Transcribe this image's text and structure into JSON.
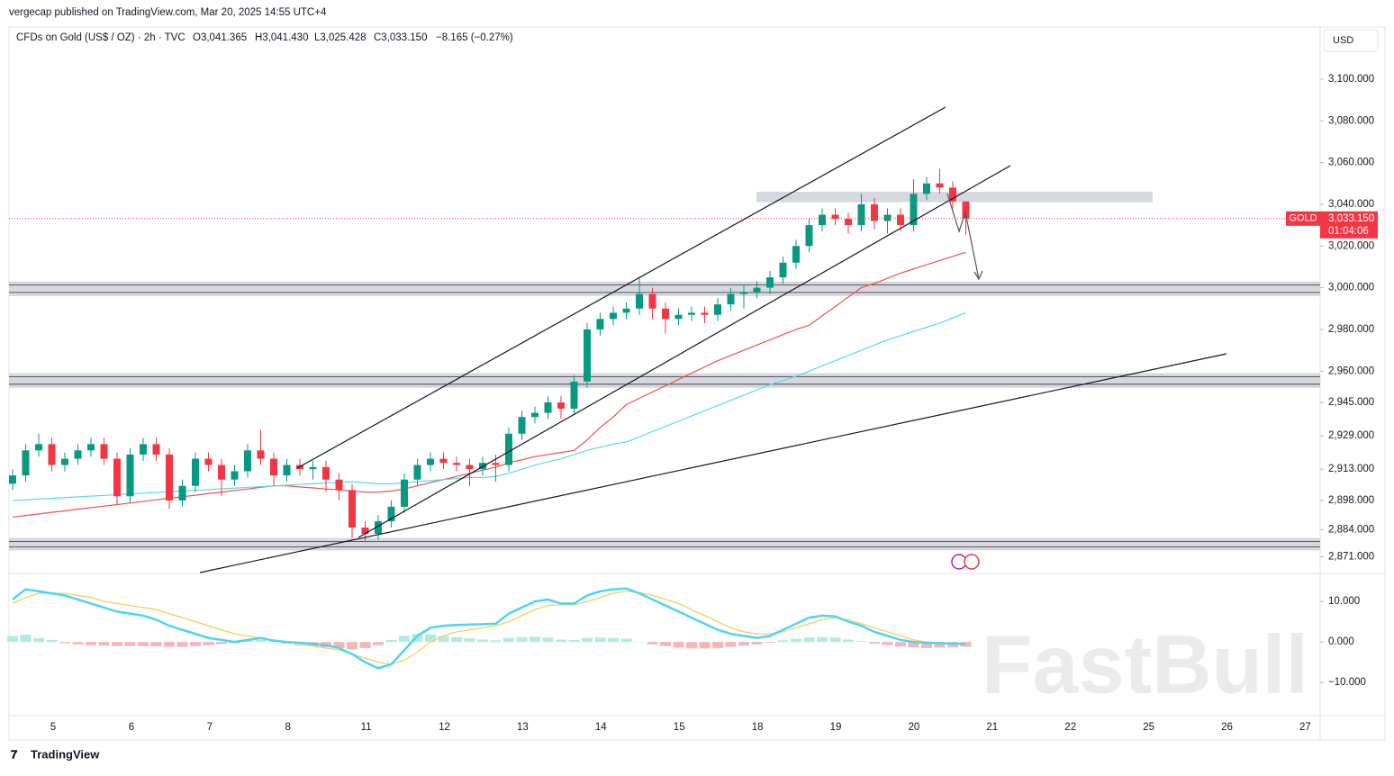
{
  "header": {
    "attribution": "vergecap published on TradingView.com, Mar 20, 2025 14:55 UTC+4",
    "footer": "TradingView"
  },
  "chart_data": {
    "type": "candlestick",
    "title": "CFDs on Gold (US$ / OZ) · 2h · TVC",
    "ohlc_labels": [
      "O3,041.365",
      "H3,041.430",
      "L3,025.428",
      "C3,033.150",
      "−8.165 (−0.27%)"
    ],
    "currency": "USD",
    "watermark": "FastBull",
    "categories": [
      "5",
      "6",
      "7",
      "8",
      "11",
      "12",
      "13",
      "14",
      "15",
      "18",
      "19",
      "20",
      "21",
      "22",
      "25",
      "26",
      "27"
    ],
    "open": [
      2906,
      2910,
      2922,
      2925,
      2915,
      2918,
      2922,
      2925,
      2918,
      2900,
      2920,
      2925,
      2920,
      2898,
      2905,
      2918,
      2915,
      2908,
      2912,
      2922,
      2918,
      2910,
      2915,
      2913,
      2914,
      2908,
      2903,
      2885,
      2882,
      2888,
      2895,
      2908,
      2915,
      2918,
      2916,
      2915,
      2913,
      2916,
      2915,
      2930,
      2938,
      2940,
      2945,
      2942,
      2955,
      2980,
      2985,
      2988,
      2990,
      2997,
      2990,
      2985,
      2987,
      2988,
      2987,
      2992,
      2997,
      2998,
      3000,
      3005,
      3012,
      3020,
      3030,
      3035,
      3033,
      3030,
      3040,
      3032,
      3035,
      3030,
      3045,
      3050,
      3048,
      3041.365
    ],
    "high": [
      2913,
      2925,
      2930,
      2928,
      2921,
      2925,
      2928,
      2928,
      2921,
      2923,
      2928,
      2928,
      2923,
      2908,
      2921,
      2921,
      2918,
      2915,
      2925,
      2932,
      2921,
      2918,
      2918,
      2917,
      2917,
      2911,
      2906,
      2888,
      2891,
      2898,
      2911,
      2918,
      2921,
      2921,
      2919,
      2918,
      2919,
      2920,
      2933,
      2941,
      2943,
      2948,
      2948,
      2958,
      2983,
      2988,
      2991,
      2993,
      3005,
      3000,
      2993,
      2990,
      2991,
      2991,
      2995,
      3000,
      3001,
      3003,
      3008,
      3015,
      3023,
      3033,
      3038,
      3038,
      3036,
      3045,
      3043,
      3038,
      3038,
      3052,
      3053,
      3057,
      3051,
      3041.43
    ],
    "low": [
      2903,
      2907,
      2919,
      2912,
      2912,
      2915,
      2919,
      2915,
      2896,
      2897,
      2917,
      2917,
      2894,
      2895,
      2902,
      2912,
      2900,
      2905,
      2909,
      2915,
      2905,
      2907,
      2910,
      2908,
      2902,
      2898,
      2880,
      2878,
      2879,
      2885,
      2892,
      2905,
      2912,
      2913,
      2912,
      2905,
      2910,
      2907,
      2912,
      2927,
      2935,
      2937,
      2937,
      2939,
      2952,
      2977,
      2982,
      2985,
      2987,
      2985,
      2978,
      2982,
      2984,
      2983,
      2984,
      2989,
      2990,
      2995,
      2997,
      3002,
      3009,
      3017,
      3027,
      3030,
      3026,
      3027,
      3028,
      3026,
      3027,
      3027,
      3042,
      3045,
      3038,
      3025.428
    ],
    "close": [
      2910,
      2922,
      2925,
      2915,
      2918,
      2922,
      2925,
      2918,
      2900,
      2920,
      2925,
      2920,
      2898,
      2905,
      2918,
      2915,
      2908,
      2912,
      2922,
      2918,
      2910,
      2915,
      2913,
      2914,
      2908,
      2903,
      2885,
      2882,
      2888,
      2895,
      2908,
      2915,
      2918,
      2916,
      2915,
      2913,
      2916,
      2915,
      2930,
      2938,
      2940,
      2945,
      2942,
      2955,
      2980,
      2985,
      2988,
      2990,
      2997,
      2990,
      2985,
      2987,
      2988,
      2987,
      2992,
      2997,
      2998,
      3000,
      3005,
      3012,
      3020,
      3030,
      3035,
      3033,
      3030,
      3040,
      3032,
      3035,
      3030,
      3045,
      3050,
      3048,
      3041.365,
      3033.15
    ],
    "up_color": "#089981",
    "down_color": "#f23645",
    "moving_averages": [
      {
        "color": "#f0524a",
        "values": [
          2890,
          2890.8,
          2891.5,
          2892.3,
          2893,
          2893.8,
          2894.5,
          2895.3,
          2896,
          2896.8,
          2897.5,
          2898.3,
          2899,
          2899.8,
          2900.5,
          2901.3,
          2902,
          2902.8,
          2903.5,
          2904.3,
          2905,
          2905,
          2904.5,
          2904,
          2903.5,
          2903,
          2902.5,
          2902,
          2902,
          2902.5,
          2903.5,
          2905,
          2906.5,
          2908,
          2909.5,
          2911,
          2912.5,
          2914,
          2916,
          2917.5,
          2919,
          2920,
          2921,
          2922,
          2927,
          2933,
          2938,
          2944,
          2947,
          2950,
          2953,
          2956,
          2959,
          2962,
          2965,
          2967.5,
          2970,
          2972.5,
          2975,
          2977.5,
          2980,
          2982,
          2986.5,
          2991,
          2995.5,
          3000,
          3002,
          3004.5,
          3007,
          3009,
          3011,
          3013,
          3015,
          3017
        ]
      },
      {
        "color": "#5ad8ee",
        "values": [
          2898,
          2898.3,
          2898.7,
          2899,
          2899.4,
          2899.7,
          2900.1,
          2900.4,
          2900.8,
          2901.1,
          2901.5,
          2901.8,
          2902.2,
          2902.5,
          2902.9,
          2903.2,
          2903.6,
          2903.9,
          2904.3,
          2904.6,
          2905,
          2905.3,
          2905.7,
          2906,
          2906.4,
          2906.7,
          2907,
          2906.5,
          2906,
          2906,
          2906.5,
          2907,
          2907.5,
          2908,
          2908.5,
          2909,
          2909,
          2909.5,
          2911,
          2913,
          2915,
          2916.5,
          2918,
          2920,
          2922,
          2923.5,
          2925,
          2926,
          2928.5,
          2931,
          2933.5,
          2936,
          2938.5,
          2941,
          2943.5,
          2946,
          2948.5,
          2951,
          2953.5,
          2955.5,
          2957.5,
          2960,
          2962.5,
          2965,
          2967.5,
          2970,
          2972.5,
          2975,
          2977,
          2979,
          2981,
          2983,
          2985.5,
          2988
        ]
      }
    ],
    "zones": [
      {
        "from": 3041,
        "to": 3046
      },
      {
        "from": 2996,
        "to": 3003
      },
      {
        "from": 2952,
        "to": 2959
      },
      {
        "from": 2874,
        "to": 2880
      }
    ],
    "last_price": {
      "value": 3033.15,
      "label": "3,033.150",
      "symbol": "GOLD",
      "countdown": "01:04:06",
      "color": "#f23645"
    },
    "ylim": [
      2863,
      3125
    ],
    "yticks": [
      {
        "value": 3100,
        "label": "3,100.000"
      },
      {
        "value": 3080,
        "label": "3,080.000"
      },
      {
        "value": 3060,
        "label": "3,060.000"
      },
      {
        "value": 3040,
        "label": "3,040.000"
      },
      {
        "value": 3020,
        "label": "3,020.000"
      },
      {
        "value": 3000,
        "label": "3,000.000"
      },
      {
        "value": 2980,
        "label": "2,980.000"
      },
      {
        "value": 2960,
        "label": "2,960.000"
      },
      {
        "value": 2945,
        "label": "2,945.000"
      },
      {
        "value": 2929,
        "label": "2,929.000"
      },
      {
        "value": 2913,
        "label": "2,913.000"
      },
      {
        "value": 2898,
        "label": "2,898.000"
      },
      {
        "value": 2884,
        "label": "2,884.000"
      },
      {
        "value": 2871,
        "label": "2,871.000"
      }
    ],
    "macd": {
      "ylim": [
        -18.2,
        16.7
      ],
      "yticks": [
        {
          "value": 10,
          "label": "10.000"
        },
        {
          "value": 0,
          "label": "0.000"
        },
        {
          "value": -10,
          "label": "−10.000"
        }
      ],
      "macd_color": "#4dd6f0",
      "signal_color": "#f5cf5a",
      "hist_up_color": "#b2ebe3",
      "hist_down_color": "#f7b5b8",
      "macd": [
        10.5,
        13,
        12.5,
        12,
        11.5,
        10.5,
        9.5,
        8.5,
        7.5,
        7,
        6.5,
        5.5,
        4,
        3,
        2,
        1,
        0.5,
        0,
        0.5,
        1,
        0.3,
        0,
        -0.2,
        -0.5,
        -0.8,
        -1.5,
        -3,
        -5,
        -6.5,
        -5.5,
        -2,
        1.5,
        3.5,
        4,
        4.2,
        4.3,
        4.4,
        4.5,
        7,
        8.5,
        10,
        10.5,
        9.5,
        9.5,
        11.5,
        12.5,
        13,
        13.2,
        12,
        10.5,
        9,
        7.5,
        6,
        4.5,
        3,
        2,
        1.5,
        1,
        1.5,
        3,
        4.5,
        6,
        6.5,
        6.3,
        5,
        4,
        2.5,
        1.5,
        0.5,
        0,
        -0.2,
        -0.3,
        -0.4,
        -0.5
      ],
      "signal": [
        9.5,
        11,
        12,
        12,
        12,
        11.5,
        11,
        10,
        9.5,
        9,
        8.5,
        8,
        7,
        6,
        5,
        4,
        3,
        2,
        1.5,
        1,
        0.5,
        0,
        -0.5,
        -1,
        -1.5,
        -2,
        -3,
        -4,
        -5,
        -5.5,
        -4.5,
        -2.5,
        0,
        1.5,
        2.5,
        3,
        3.5,
        4,
        5,
        6.5,
        8,
        9,
        9.2,
        9.2,
        10,
        11,
        12,
        12.5,
        12.2,
        11.5,
        10.5,
        9.5,
        8,
        6.5,
        5,
        3.5,
        2.5,
        2,
        2,
        2.5,
        3.5,
        4.5,
        5.5,
        6,
        5.5,
        4.5,
        3.5,
        2.5,
        1.5,
        0.5,
        0,
        -0.2,
        -0.3,
        -0.4
      ],
      "histogram": [
        1.5,
        1.8,
        1,
        0.5,
        -0.3,
        -0.6,
        -0.8,
        -0.9,
        -1,
        -1,
        -1,
        -1.1,
        -1.2,
        -1.2,
        -1,
        -0.8,
        -0.5,
        -0.3,
        0.4,
        0.6,
        0.2,
        -0.4,
        -0.8,
        -1.1,
        -1.3,
        -1.5,
        -1.8,
        -1.5,
        -0.8,
        0.5,
        1.5,
        2,
        1.9,
        1.5,
        1.2,
        0.9,
        0.6,
        0.4,
        1,
        1.2,
        1.3,
        1.1,
        0.6,
        0.5,
        1,
        1.1,
        1,
        0.8,
        0,
        -0.6,
        -1,
        -1.4,
        -1.6,
        -1.6,
        -1.5,
        -1.2,
        -0.9,
        -0.6,
        -0.2,
        0.4,
        0.8,
        1.1,
        1.2,
        1.1,
        0.6,
        0.2,
        -0.4,
        -0.8,
        -1.1,
        -1.3,
        -1.5,
        -1.4,
        -1.3,
        -1.2
      ]
    }
  }
}
